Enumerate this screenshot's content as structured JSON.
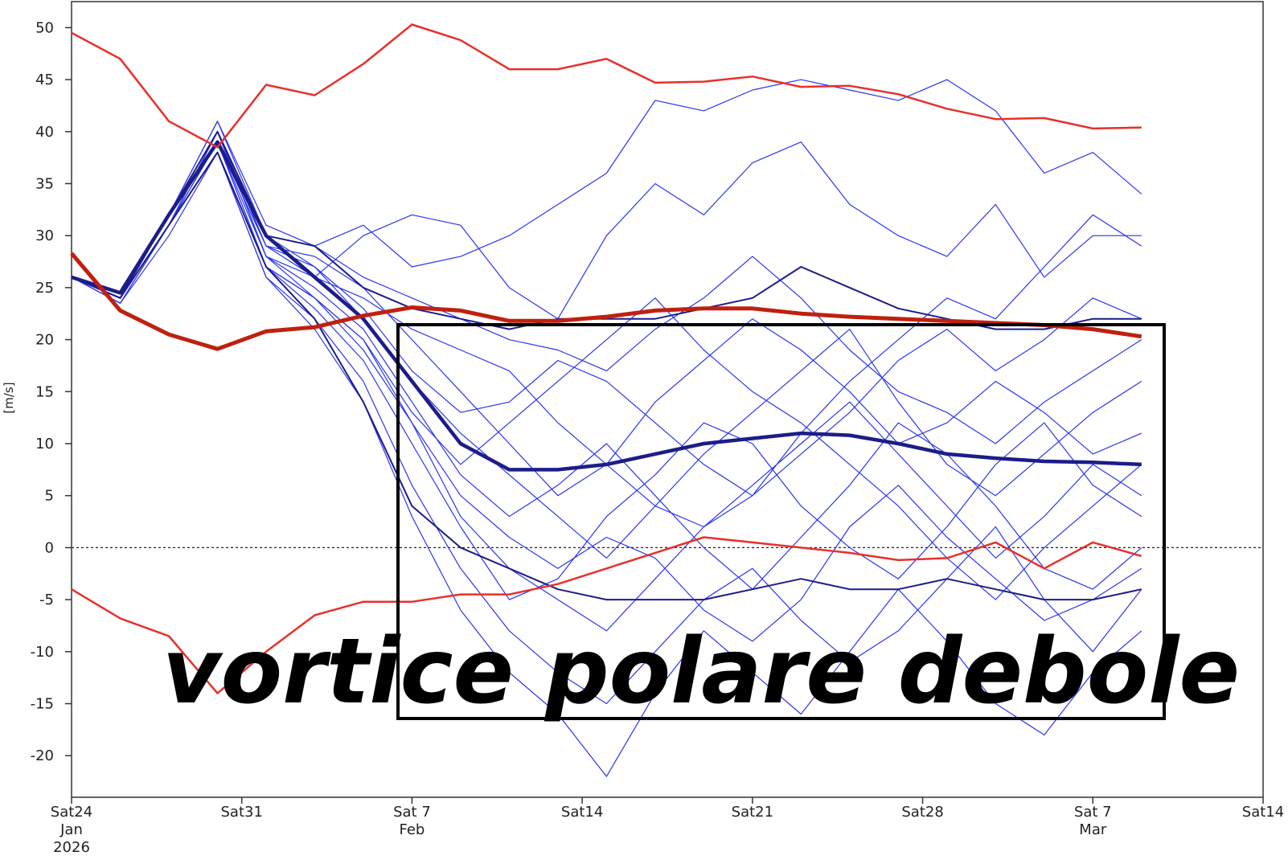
{
  "chart_data": {
    "type": "line",
    "y_label": "[m/s]",
    "annotation": "vortice polare debole",
    "x": [
      "2026-01-24",
      "2026-01-26",
      "2026-01-28",
      "2026-01-30",
      "2026-02-01",
      "2026-02-03",
      "2026-02-05",
      "2026-02-07",
      "2026-02-09",
      "2026-02-11",
      "2026-02-13",
      "2026-02-15",
      "2026-02-17",
      "2026-02-19",
      "2026-02-21",
      "2026-02-23",
      "2026-02-25",
      "2026-02-27",
      "2026-03-01",
      "2026-03-03",
      "2026-03-05",
      "2026-03-07",
      "2026-03-09"
    ],
    "xlim": [
      "2026-01-24",
      "2026-03-14"
    ],
    "xticks": [
      {
        "value": "2026-01-24",
        "label": [
          "Sat24",
          "Jan",
          "2026"
        ]
      },
      {
        "value": "2026-01-31",
        "label": [
          "Sat31"
        ]
      },
      {
        "value": "2026-02-07",
        "label": [
          "Sat 7",
          "Feb"
        ]
      },
      {
        "value": "2026-02-14",
        "label": [
          "Sat14"
        ]
      },
      {
        "value": "2026-02-21",
        "label": [
          "Sat21"
        ]
      },
      {
        "value": "2026-02-28",
        "label": [
          "Sat28"
        ]
      },
      {
        "value": "2026-03-07",
        "label": [
          "Sat 7",
          "Mar"
        ]
      },
      {
        "value": "2026-03-14",
        "label": [
          "Sat14"
        ]
      }
    ],
    "ylim": [
      -24,
      52.5
    ],
    "yticks": [
      -20,
      -15,
      -10,
      -5,
      0,
      5,
      10,
      15,
      20,
      25,
      30,
      35,
      40,
      45,
      50
    ],
    "reference_line": 0,
    "series": [
      {
        "color": "#2a35f0",
        "width": 1.2,
        "values": [
          26,
          24,
          32,
          40,
          29,
          28,
          25,
          20,
          15,
          10,
          5,
          8,
          14,
          18,
          22,
          19,
          15,
          10,
          12,
          16,
          13,
          9,
          11
        ]
      },
      {
        "color": "#2a35f0",
        "width": 1.2,
        "values": [
          26,
          23.5,
          31,
          38,
          27,
          24,
          20,
          12,
          3,
          -2,
          -5,
          -8,
          -3,
          2,
          6,
          10,
          14,
          9,
          4,
          -1,
          3,
          8,
          5
        ]
      },
      {
        "color": "#2a35f0",
        "width": 1.2,
        "values": [
          26,
          24,
          32,
          41,
          30,
          29,
          31,
          27,
          28,
          30,
          33,
          36,
          43,
          42,
          44,
          45,
          44,
          43,
          45,
          42,
          36,
          38,
          34
        ]
      },
      {
        "color": "#2a35f0",
        "width": 1.2,
        "values": [
          26,
          24,
          31,
          39,
          28,
          26,
          30,
          32,
          31,
          25,
          22,
          30,
          35,
          32,
          37,
          39,
          33,
          30,
          28,
          33,
          26,
          30,
          30
        ]
      },
      {
        "color": "#2a35f0",
        "width": 1.2,
        "values": [
          26,
          23.5,
          30,
          38,
          26,
          22,
          16,
          6,
          -2,
          -8,
          -12,
          -15,
          -10,
          -5,
          -2,
          -7,
          -11,
          -8,
          -3,
          2,
          -5,
          -10,
          -4
        ]
      },
      {
        "color": "#2a35f0",
        "width": 1.2,
        "values": [
          26,
          24,
          31,
          40,
          29,
          27,
          23,
          17,
          13,
          14,
          18,
          16,
          12,
          8,
          5,
          9,
          13,
          18,
          21,
          17,
          20,
          24,
          22
        ]
      },
      {
        "color": "#2a35f0",
        "width": 1.2,
        "values": [
          26,
          24,
          32,
          39,
          27,
          23,
          18,
          10,
          2,
          -5,
          -3,
          3,
          7,
          12,
          10,
          4,
          0,
          -3,
          2,
          8,
          12,
          6,
          3
        ]
      },
      {
        "color": "#2a35f0",
        "width": 1.2,
        "values": [
          26,
          24,
          31,
          38,
          26,
          21,
          14,
          3,
          -6,
          -12,
          -16,
          -22,
          -14,
          -8,
          -12,
          -16,
          -10,
          -4,
          -9,
          -15,
          -18,
          -12,
          -8
        ]
      },
      {
        "color": "#2a35f0",
        "width": 1.2,
        "values": [
          26,
          24,
          32,
          41,
          31,
          29,
          26,
          24,
          22,
          20,
          19,
          17,
          21,
          24,
          28,
          24,
          19,
          15,
          13,
          10,
          14,
          17,
          20
        ]
      },
      {
        "color": "#2a35f0",
        "width": 1.2,
        "values": [
          26,
          23.5,
          31,
          40,
          28,
          25,
          21,
          14,
          7,
          3,
          6,
          10,
          5,
          0,
          -4,
          1,
          6,
          12,
          9,
          4,
          -2,
          -4,
          0
        ]
      },
      {
        "color": "#2a35f0",
        "width": 1.2,
        "values": [
          26,
          24,
          32,
          39,
          29,
          26,
          24,
          21,
          19,
          17,
          12,
          8,
          4,
          2,
          5,
          11,
          16,
          20,
          24,
          22,
          27,
          32,
          29
        ]
      },
      {
        "color": "#2a35f0",
        "width": 1.2,
        "values": [
          26,
          24,
          31,
          40,
          28,
          24,
          19,
          12,
          5,
          1,
          -2,
          1,
          -1,
          -6,
          -9,
          -5,
          2,
          6,
          1,
          -3,
          -7,
          -5,
          -2
        ]
      },
      {
        "color": "#2a35f0",
        "width": 1.2,
        "values": [
          26,
          24,
          32,
          40,
          30,
          27,
          22,
          16,
          11,
          7,
          3,
          -1,
          4,
          9,
          13,
          17,
          21,
          14,
          8,
          5,
          9,
          13,
          16
        ]
      },
      {
        "color": "#2a35f0",
        "width": 1.2,
        "values": [
          26,
          24,
          31,
          39,
          27,
          24,
          20,
          13,
          8,
          12,
          16,
          20,
          24,
          19,
          15,
          12,
          8,
          4,
          -1,
          -5,
          0,
          4,
          8
        ]
      },
      {
        "color": "#1c1c8a",
        "width": 2,
        "values": [
          26,
          24,
          32,
          40,
          30,
          29,
          25,
          23,
          22,
          21,
          22,
          22,
          22,
          23,
          24,
          27,
          25,
          23,
          22,
          21,
          21,
          22,
          22
        ]
      },
      {
        "color": "#1c1c8a",
        "width": 2,
        "values": [
          26,
          24,
          31,
          38,
          27,
          22,
          14,
          4,
          0,
          -2,
          -4,
          -5,
          -5,
          -5,
          -4,
          -3,
          -4,
          -4,
          -3,
          -4,
          -5,
          -5,
          -4
        ]
      },
      {
        "color": "#1c1c8a",
        "width": 4.5,
        "values": [
          26,
          24.5,
          32,
          39,
          30,
          26,
          22,
          16,
          10,
          7.5,
          7.5,
          8,
          9,
          10,
          10.5,
          11,
          10.8,
          10,
          9,
          8.6,
          8.3,
          8.2,
          8
        ]
      },
      {
        "color": "#e8302a",
        "width": 2.5,
        "values": [
          49.5,
          47,
          41,
          38.5,
          44.5,
          43.5,
          46.5,
          50.3,
          48.8,
          46,
          46,
          47,
          44.7,
          44.8,
          45.3,
          44.3,
          44.4,
          43.6,
          42.2,
          41.2,
          41.3,
          40.3,
          40.4
        ]
      },
      {
        "color": "#e8302a",
        "width": 2.5,
        "values": [
          -4,
          -6.8,
          -8.5,
          -14,
          -10,
          -6.5,
          -5.2,
          -5.2,
          -4.5,
          -4.5,
          -3.5,
          -2,
          -0.5,
          1,
          0.5,
          0,
          -0.5,
          -1.2,
          -1,
          0.5,
          -2,
          0.5,
          -0.8
        ]
      },
      {
        "color": "#c0200e",
        "width": 5,
        "values": [
          28.3,
          22.8,
          20.5,
          19.1,
          20.8,
          21.2,
          22.3,
          23.1,
          22.8,
          21.8,
          21.8,
          22.2,
          22.8,
          23,
          23,
          22.5,
          22.2,
          22,
          21.8,
          21.6,
          21.4,
          21,
          20.3
        ]
      }
    ]
  }
}
